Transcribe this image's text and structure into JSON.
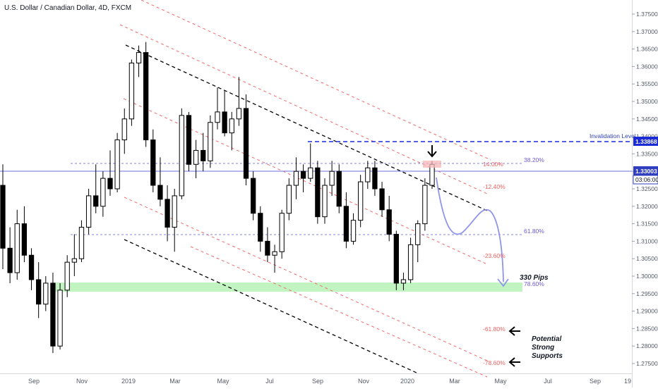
{
  "chart_data": {
    "type": "candlestick",
    "title": "U.S. Dollar / Canadian Dollar, 4D, FXCM",
    "y_ticks": [
      "1.37500",
      "1.37000",
      "1.36500",
      "1.36000",
      "1.35500",
      "1.35000",
      "1.34500",
      "1.34000",
      "1.33500",
      "1.33000",
      "1.32500",
      "1.32000",
      "1.31500",
      "1.31000",
      "1.30500",
      "1.30000",
      "1.29500",
      "1.29000",
      "1.28500",
      "1.28000",
      "1.27500"
    ],
    "x_ticks": [
      "Sep",
      "Nov",
      "2019",
      "Mar",
      "May",
      "Jul",
      "Sep",
      "Nov",
      "2020",
      "Mar",
      "May",
      "Jul",
      "Sep",
      "19"
    ],
    "candles": [
      [
        1.326,
        1.332,
        1.302,
        1.308
      ],
      [
        1.308,
        1.314,
        1.298,
        1.301
      ],
      [
        1.301,
        1.319,
        1.299,
        1.315
      ],
      [
        1.315,
        1.32,
        1.304,
        1.306
      ],
      [
        1.306,
        1.308,
        1.296,
        1.299
      ],
      [
        1.299,
        1.304,
        1.288,
        1.292
      ],
      [
        1.292,
        1.3,
        1.29,
        1.298
      ],
      [
        1.298,
        1.301,
        1.278,
        1.28
      ],
      [
        1.28,
        1.298,
        1.279,
        1.296
      ],
      [
        1.296,
        1.306,
        1.294,
        1.304
      ],
      [
        1.304,
        1.312,
        1.3,
        1.305
      ],
      [
        1.305,
        1.316,
        1.304,
        1.314
      ],
      [
        1.314,
        1.325,
        1.312,
        1.323
      ],
      [
        1.323,
        1.332,
        1.318,
        1.32
      ],
      [
        1.32,
        1.33,
        1.317,
        1.328
      ],
      [
        1.328,
        1.336,
        1.323,
        1.325
      ],
      [
        1.325,
        1.341,
        1.324,
        1.339
      ],
      [
        1.339,
        1.348,
        1.335,
        1.345
      ],
      [
        1.345,
        1.362,
        1.343,
        1.361
      ],
      [
        1.361,
        1.366,
        1.357,
        1.364
      ],
      [
        1.364,
        1.367,
        1.337,
        1.339
      ],
      [
        1.339,
        1.342,
        1.324,
        1.326
      ],
      [
        1.326,
        1.334,
        1.32,
        1.322
      ],
      [
        1.322,
        1.326,
        1.31,
        1.314
      ],
      [
        1.314,
        1.325,
        1.307,
        1.323
      ],
      [
        1.323,
        1.348,
        1.322,
        1.346
      ],
      [
        1.346,
        1.347,
        1.33,
        1.332
      ],
      [
        1.332,
        1.339,
        1.328,
        1.336
      ],
      [
        1.336,
        1.341,
        1.33,
        1.333
      ],
      [
        1.333,
        1.346,
        1.331,
        1.344
      ],
      [
        1.344,
        1.354,
        1.342,
        1.347
      ],
      [
        1.347,
        1.353,
        1.34,
        1.341
      ],
      [
        1.341,
        1.347,
        1.336,
        1.345
      ],
      [
        1.345,
        1.357,
        1.343,
        1.348
      ],
      [
        1.348,
        1.352,
        1.326,
        1.328
      ],
      [
        1.328,
        1.33,
        1.316,
        1.318
      ],
      [
        1.318,
        1.32,
        1.307,
        1.31
      ],
      [
        1.31,
        1.314,
        1.304,
        1.306
      ],
      [
        1.306,
        1.309,
        1.301,
        1.307
      ],
      [
        1.307,
        1.319,
        1.305,
        1.318
      ],
      [
        1.318,
        1.328,
        1.316,
        1.326
      ],
      [
        1.326,
        1.334,
        1.322,
        1.33
      ],
      [
        1.33,
        1.332,
        1.324,
        1.328
      ],
      [
        1.328,
        1.338,
        1.327,
        1.331
      ],
      [
        1.331,
        1.333,
        1.315,
        1.317
      ],
      [
        1.317,
        1.328,
        1.315,
        1.326
      ],
      [
        1.326,
        1.333,
        1.323,
        1.33
      ],
      [
        1.33,
        1.332,
        1.318,
        1.32
      ],
      [
        1.32,
        1.324,
        1.308,
        1.31
      ],
      [
        1.31,
        1.318,
        1.309,
        1.316
      ],
      [
        1.316,
        1.329,
        1.314,
        1.327
      ],
      [
        1.327,
        1.333,
        1.325,
        1.331
      ],
      [
        1.331,
        1.333,
        1.323,
        1.325
      ],
      [
        1.325,
        1.327,
        1.317,
        1.319
      ],
      [
        1.319,
        1.323,
        1.31,
        1.312
      ],
      [
        1.312,
        1.313,
        1.296,
        1.298
      ],
      [
        1.298,
        1.301,
        1.296,
        1.299
      ],
      [
        1.299,
        1.311,
        1.298,
        1.309
      ],
      [
        1.309,
        1.316,
        1.304,
        1.315
      ],
      [
        1.315,
        1.328,
        1.313,
        1.326
      ],
      [
        1.326,
        1.333,
        1.325,
        1.332
      ]
    ]
  },
  "header": {
    "title": "U.S. Dollar / Canadian Dollar, 4D, FXCM"
  },
  "annotations": {
    "invalidation_label": "Invalidation Level",
    "invalidation_price": "1.33868",
    "current_price": "1.33003",
    "countdown": "03:06:00",
    "fib_38": "38.20%",
    "fib_61": "61.80%",
    "fib_78": "78.60%",
    "fib_14": "14.00%",
    "fib_m12": "-12.40%",
    "fib_m23": "-23.60%",
    "fib_m61": "-61.80%",
    "fib_m78": "-78.60%",
    "pips_label": "330 Pips",
    "supports_line1": "Potential",
    "supports_line2": "Strong",
    "supports_line3": "Supports"
  },
  "colors": {
    "bull": "#ffffff",
    "bear": "#000000",
    "red_dash": "#f26b6b",
    "black_dash": "#000000",
    "blue_dash": "#1a2bd6",
    "price_line": "#6f6fe0",
    "fib_line": "#5b5bd6",
    "support_zone": "#b6f2b6",
    "projection": "#8f95e8"
  }
}
